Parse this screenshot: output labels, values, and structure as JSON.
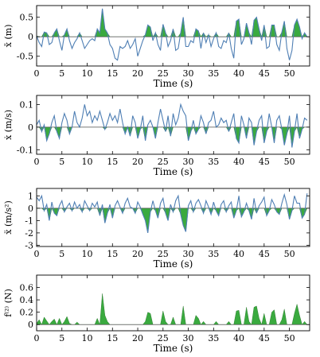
{
  "colors": {
    "line": "#4f7fb4",
    "fill": "#3aaa3f",
    "zero": "#555555",
    "axis": "#000000"
  },
  "chart_data": [
    {
      "type": "line",
      "ylabel": "x̄ (m)",
      "xlabel": "Time (s)",
      "xlim": [
        0,
        54
      ],
      "ylim": [
        -0.75,
        0.8
      ],
      "xticks": [
        0,
        5,
        10,
        15,
        20,
        25,
        30,
        35,
        40,
        45,
        50
      ],
      "yticks": [
        -0.5,
        0,
        0.5
      ],
      "ytick_labels": [
        "-0.5",
        "0",
        "0.5"
      ],
      "fill_positive": true,
      "series": [
        {
          "x": [
            0,
            0.5,
            1,
            1.5,
            2,
            2.5,
            3,
            3.5,
            4,
            4.5,
            5,
            5.5,
            6,
            6.5,
            7,
            7.5,
            8,
            8.5,
            9,
            9.5,
            10,
            10.5,
            11,
            11.5,
            12,
            12.5,
            13,
            13.5,
            14,
            14.5,
            15,
            15.5,
            16,
            16.5,
            17,
            17.5,
            18,
            18.5,
            19,
            19.5,
            20,
            20.5,
            21,
            21.5,
            22,
            22.5,
            23,
            23.5,
            24,
            24.5,
            25,
            25.5,
            26,
            26.5,
            27,
            27.5,
            28,
            28.5,
            29,
            29.5,
            30,
            30.5,
            31,
            31.5,
            32,
            32.5,
            33,
            33.5,
            34,
            34.5,
            35,
            35.5,
            36,
            36.5,
            37,
            37.5,
            38,
            38.5,
            39,
            39.5,
            40,
            40.5,
            41,
            41.5,
            42,
            42.5,
            43,
            43.5,
            44,
            44.5,
            45,
            45.5,
            46,
            46.5,
            47,
            47.5,
            48,
            48.5,
            49,
            49.5,
            50,
            50.5,
            51,
            51.5,
            52,
            52.5,
            53,
            53.5
          ],
          "y": [
            0.02,
            -0.15,
            -0.25,
            0.12,
            0.1,
            -0.2,
            -0.15,
            0.1,
            0.2,
            -0.1,
            -0.35,
            0.05,
            0.2,
            -0.1,
            -0.3,
            -0.15,
            -0.05,
            0.1,
            -0.1,
            -0.3,
            -0.2,
            -0.1,
            -0.05,
            -0.1,
            0.2,
            0.1,
            0.72,
            0.2,
            0.1,
            -0.2,
            -0.3,
            -0.55,
            -0.6,
            -0.25,
            -0.3,
            -0.25,
            -0.1,
            -0.3,
            -0.2,
            -0.05,
            -0.5,
            -0.3,
            -0.1,
            0.05,
            0.3,
            0.25,
            -0.1,
            0.1,
            -0.2,
            -0.35,
            0.32,
            0.1,
            -0.25,
            -0.1,
            0.2,
            -0.35,
            -0.3,
            0.1,
            0.5,
            -0.25,
            -0.25,
            -0.1,
            -0.15,
            0.2,
            0.15,
            -0.3,
            0.1,
            -0.15,
            0.05,
            -0.25,
            -0.05,
            0.1,
            -0.25,
            -0.3,
            -0.1,
            -0.15,
            0.1,
            -0.3,
            -0.55,
            0.4,
            0.45,
            -0.2,
            -0.05,
            0.35,
            0.1,
            -0.2,
            0.42,
            0.5,
            0.2,
            -0.1,
            0.3,
            -0.3,
            -0.25,
            0.3,
            0.3,
            -0.2,
            -0.35,
            0.12,
            0.4,
            -0.3,
            -0.6,
            -0.35,
            0.3,
            0.45,
            0.25,
            -0.05,
            0.1,
            0.0
          ]
        }
      ]
    },
    {
      "type": "line",
      "ylabel": "ẋ (m/s)",
      "xlabel": "Time (s)",
      "xlim": [
        0,
        54
      ],
      "ylim": [
        -0.12,
        0.14
      ],
      "xticks": [
        0,
        5,
        10,
        15,
        20,
        25,
        30,
        35,
        40,
        45,
        50
      ],
      "yticks": [
        -0.1,
        0,
        0.1
      ],
      "ytick_labels": [
        "-0.1",
        "0",
        "0.1"
      ],
      "fill_negative": true,
      "series": [
        {
          "x": [
            0,
            0.5,
            1,
            1.5,
            2,
            2.5,
            3,
            3.5,
            4,
            4.5,
            5,
            5.5,
            6,
            6.5,
            7,
            7.5,
            8,
            8.5,
            9,
            9.5,
            10,
            10.5,
            11,
            11.5,
            12,
            12.5,
            13,
            13.5,
            14,
            14.5,
            15,
            15.5,
            16,
            16.5,
            17,
            17.5,
            18,
            18.5,
            19,
            19.5,
            20,
            20.5,
            21,
            21.5,
            22,
            22.5,
            23,
            23.5,
            24,
            24.5,
            25,
            25.5,
            26,
            26.5,
            27,
            27.5,
            28,
            28.5,
            29,
            29.5,
            30,
            30.5,
            31,
            31.5,
            32,
            32.5,
            33,
            33.5,
            34,
            34.5,
            35,
            35.5,
            36,
            36.5,
            37,
            37.5,
            38,
            38.5,
            39,
            39.5,
            40,
            40.5,
            41,
            41.5,
            42,
            42.5,
            43,
            43.5,
            44,
            44.5,
            45,
            45.5,
            46,
            46.5,
            47,
            47.5,
            48,
            48.5,
            49,
            49.5,
            50,
            50.5,
            51,
            51.5,
            52,
            52.5,
            53,
            53.5
          ],
          "y": [
            0.01,
            0.03,
            -0.02,
            0.01,
            -0.06,
            -0.03,
            0.02,
            0.05,
            -0.02,
            -0.05,
            0.02,
            0.06,
            0.03,
            -0.03,
            0.0,
            0.07,
            0.02,
            0.0,
            0.04,
            0.1,
            0.05,
            0.07,
            0.02,
            0.05,
            0.03,
            0.07,
            0.03,
            -0.01,
            0.02,
            0.06,
            0.03,
            0.05,
            0.02,
            0.08,
            0.02,
            -0.03,
            0.0,
            -0.04,
            0.05,
            0.02,
            -0.05,
            -0.01,
            0.05,
            -0.06,
            0.01,
            0.03,
            0.0,
            -0.05,
            0.02,
            0.08,
            0.03,
            -0.02,
            0.05,
            -0.04,
            0.06,
            0.01,
            0.04,
            0.1,
            0.07,
            0.05,
            -0.06,
            -0.02,
            0.03,
            -0.03,
            -0.01,
            0.05,
            0.02,
            -0.03,
            0.02,
            0.03,
            0.07,
            0.0,
            0.01,
            0.04,
            0.02,
            0.03,
            -0.02,
            0.02,
            0.06,
            -0.05,
            -0.07,
            0.05,
            0.01,
            -0.05,
            0.04,
            0.02,
            -0.08,
            -0.02,
            0.03,
            0.05,
            -0.07,
            -0.02,
            0.06,
            0.0,
            -0.07,
            0.03,
            0.05,
            -0.01,
            -0.08,
            -0.03,
            0.05,
            -0.09,
            -0.02,
            0.06,
            -0.05,
            -0.01,
            0.04,
            0.03
          ]
        }
      ]
    },
    {
      "type": "line",
      "ylabel": "ẍ (m/s²)",
      "xlabel": "Time (s)",
      "xlim": [
        0,
        54
      ],
      "ylim": [
        -3.1,
        1.6
      ],
      "xticks": [
        0,
        5,
        10,
        15,
        20,
        25,
        30,
        35,
        40,
        45,
        50
      ],
      "yticks": [
        -3,
        -2,
        -1,
        0,
        1
      ],
      "ytick_labels": [
        "-3",
        "-2",
        "-1",
        "0",
        "1"
      ],
      "fill_negative": true,
      "series": [
        {
          "x": [
            0,
            0.5,
            1,
            1.5,
            2,
            2.5,
            3,
            3.5,
            4,
            4.5,
            5,
            5.5,
            6,
            6.5,
            7,
            7.5,
            8,
            8.5,
            9,
            9.5,
            10,
            10.5,
            11,
            11.5,
            12,
            12.5,
            13,
            13.5,
            14,
            14.5,
            15,
            15.5,
            16,
            16.5,
            17,
            17.5,
            18,
            18.5,
            19,
            19.5,
            20,
            20.5,
            21,
            21.5,
            22,
            22.5,
            23,
            23.5,
            24,
            24.5,
            25,
            25.5,
            26,
            26.5,
            27,
            27.5,
            28,
            28.5,
            29,
            29.5,
            30,
            30.5,
            31,
            31.5,
            32,
            32.5,
            33,
            33.5,
            34,
            34.5,
            35,
            35.5,
            36,
            36.5,
            37,
            37.5,
            38,
            38.5,
            39,
            39.5,
            40,
            40.5,
            41,
            41.5,
            42,
            42.5,
            43,
            43.5,
            44,
            44.5,
            45,
            45.5,
            46,
            46.5,
            47,
            47.5,
            48,
            48.5,
            49,
            49.5,
            50,
            50.5,
            51,
            51.5,
            52,
            52.5,
            53,
            53.5
          ],
          "y": [
            0.9,
            0.6,
            1.0,
            -0.2,
            0.3,
            -1.0,
            0.5,
            -0.4,
            -0.6,
            0.2,
            0.6,
            -0.3,
            0.1,
            0.4,
            -0.2,
            0.5,
            0.0,
            0.3,
            -0.3,
            0.6,
            0.2,
            -0.2,
            0.4,
            0.1,
            0.5,
            -0.6,
            0.3,
            -1.2,
            -0.4,
            0.3,
            -0.8,
            0.2,
            0.6,
            0.1,
            -0.4,
            0.4,
            0.8,
            0.1,
            0.0,
            -0.4,
            0.5,
            0.1,
            -0.5,
            -1.0,
            -2.0,
            -0.3,
            0.6,
            -0.2,
            -0.8,
            0.4,
            0.8,
            -0.4,
            -1.0,
            0.3,
            -0.3,
            0.6,
            1.0,
            -0.5,
            -1.4,
            -1.9,
            0.2,
            0.6,
            -0.3,
            0.4,
            0.7,
            0.2,
            -0.4,
            0.6,
            0.1,
            -0.5,
            0.5,
            -0.2,
            -0.6,
            0.3,
            0.6,
            -0.3,
            0.2,
            0.5,
            -0.8,
            -0.2,
            1.0,
            -0.7,
            -0.3,
            0.4,
            -0.2,
            -0.9,
            0.8,
            -0.4,
            0.2,
            0.5,
            0.9,
            -0.6,
            -0.2,
            0.7,
            0.3,
            -0.3,
            -0.5,
            0.4,
            1.1,
            0.3,
            -0.9,
            -0.2,
            1.0,
            0.4,
            0.4,
            -0.8,
            -0.5,
            1.2
          ]
        }
      ]
    },
    {
      "type": "area",
      "ylabel": "f⁽²⁾ (N)",
      "xlabel": "Time (s)",
      "xlim": [
        0,
        54
      ],
      "ylim": [
        -0.1,
        0.8
      ],
      "xticks": [
        0,
        5,
        10,
        15,
        20,
        25,
        30,
        35,
        40,
        45,
        50
      ],
      "yticks": [
        0,
        0.2,
        0.4,
        0.6
      ],
      "ytick_labels": [
        "0",
        "0.2",
        "0.4",
        "0.6"
      ],
      "fill_positive": true,
      "series": [
        {
          "x": [
            0,
            0.5,
            1,
            1.5,
            2,
            2.5,
            3,
            3.5,
            4,
            4.5,
            5,
            5.5,
            6,
            6.5,
            7,
            7.5,
            8,
            8.5,
            9,
            9.5,
            10,
            10.5,
            11,
            11.5,
            12,
            12.5,
            13,
            13.5,
            14,
            14.5,
            15,
            15.5,
            16,
            16.5,
            17,
            17.5,
            18,
            18.5,
            19,
            19.5,
            20,
            20.5,
            21,
            21.5,
            22,
            22.5,
            23,
            23.5,
            24,
            24.5,
            25,
            25.5,
            26,
            26.5,
            27,
            27.5,
            28,
            28.5,
            29,
            29.5,
            30,
            30.5,
            31,
            31.5,
            32,
            32.5,
            33,
            33.5,
            34,
            34.5,
            35,
            35.5,
            36,
            36.5,
            37,
            37.5,
            38,
            38.5,
            39,
            39.5,
            40,
            40.5,
            41,
            41.5,
            42,
            42.5,
            43,
            43.5,
            44,
            44.5,
            45,
            45.5,
            46,
            46.5,
            47,
            47.5,
            48,
            48.5,
            49,
            49.5,
            50,
            50.5,
            51,
            51.5,
            52,
            52.5,
            53,
            53.5
          ],
          "y": [
            0.02,
            0.08,
            0.0,
            0.12,
            0.06,
            0.0,
            0.05,
            0.09,
            0.0,
            0.1,
            0.0,
            0.05,
            0.13,
            0.02,
            0.0,
            0.0,
            0.04,
            0.0,
            0.0,
            0.0,
            0.0,
            0.0,
            0.0,
            0.0,
            0.1,
            0.0,
            0.5,
            0.15,
            0.05,
            0.0,
            0.0,
            0.0,
            0.0,
            0.0,
            0.0,
            0.0,
            0.0,
            0.0,
            0.0,
            0.0,
            0.0,
            0.0,
            0.0,
            0.05,
            0.2,
            0.18,
            0.0,
            0.0,
            0.0,
            0.0,
            0.22,
            0.05,
            0.0,
            0.0,
            0.12,
            0.0,
            0.0,
            0.0,
            0.3,
            0.0,
            0.0,
            0.0,
            0.0,
            0.15,
            0.1,
            0.0,
            0.05,
            0.0,
            0.0,
            0.0,
            0.0,
            0.05,
            0.0,
            0.0,
            0.0,
            0.0,
            0.05,
            0.0,
            0.0,
            0.22,
            0.23,
            0.0,
            0.0,
            0.28,
            0.05,
            0.0,
            0.28,
            0.3,
            0.1,
            0.0,
            0.18,
            0.0,
            0.0,
            0.2,
            0.24,
            0.0,
            0.0,
            0.08,
            0.25,
            0.0,
            0.0,
            0.0,
            0.18,
            0.33,
            0.15,
            0.0,
            0.05,
            0.0
          ]
        }
      ]
    }
  ]
}
